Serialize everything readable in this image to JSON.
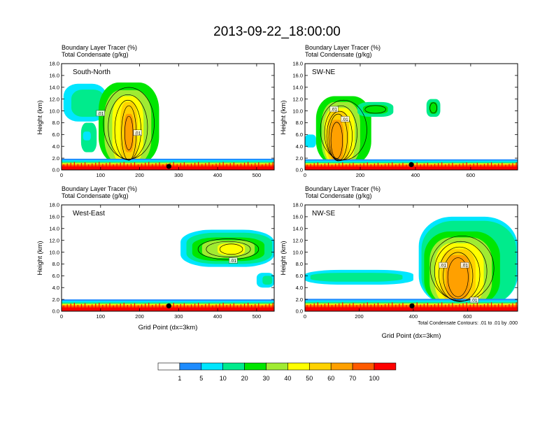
{
  "page": {
    "title": "2013-09-22_18:00:00"
  },
  "colors": {
    "levels": [
      "#ffffff",
      "#1e8cff",
      "#00e6ff",
      "#00eb8c",
      "#00e600",
      "#a0eb32",
      "#ffff00",
      "#ffd200",
      "#ffa000",
      "#ff5a00",
      "#ff0000"
    ],
    "contour": "#000000",
    "frame": "#000000"
  },
  "colorbar": {
    "labels": [
      "1",
      "5",
      "10",
      "20",
      "30",
      "40",
      "50",
      "60",
      "70",
      "100"
    ]
  },
  "footnote": "Total Condensate Contours: .01 to .01 by .000",
  "chart_data": [
    {
      "type": "heatmap",
      "panel": "South-North",
      "title_lines": [
        "Boundary Layer Tracer   (%)",
        "Total Condensate   (g/kg)"
      ],
      "ylabel": "Height (km)",
      "xlabel": "",
      "xlim": [
        0,
        545
      ],
      "ylim": [
        0,
        18
      ],
      "x_ticks": [
        "0",
        "100",
        "200",
        "300",
        "400",
        "500"
      ],
      "x_tick_values": [
        0,
        100,
        200,
        300,
        400,
        500
      ],
      "y_ticks": [
        "0.0",
        "2.0",
        "4.0",
        "6.0",
        "8.0",
        "10.0",
        "12.0",
        "14.0",
        "16.0",
        "18.0"
      ],
      "marker": {
        "x": 275,
        "y": 0.6
      },
      "boundary_layer_top_km": 1.9,
      "contour_labels": [
        {
          "text": ".01",
          "x": 100,
          "y": 9.6
        },
        {
          "text": ".01",
          "x": 195,
          "y": 6.3
        }
      ],
      "blobs": [
        {
          "x": [
            5,
            115
          ],
          "y": [
            8.2,
            14.6
          ],
          "level": 2
        },
        {
          "x": [
            25,
            110
          ],
          "y": [
            9.0,
            13.6
          ],
          "level": 3
        },
        {
          "x": [
            95,
            250
          ],
          "y": [
            1.0,
            14.8
          ],
          "level": 4
        },
        {
          "x": [
            110,
            230
          ],
          "y": [
            1.0,
            13.5
          ],
          "level": 5
        },
        {
          "x": [
            130,
            210
          ],
          "y": [
            1.0,
            12.5
          ],
          "level": 6
        },
        {
          "x": [
            150,
            195
          ],
          "y": [
            1.0,
            11.5
          ],
          "level": 7
        },
        {
          "x": [
            160,
            185
          ],
          "y": [
            3.0,
            9.5
          ],
          "level": 8
        },
        {
          "x": [
            50,
            90
          ],
          "y": [
            3.0,
            8.0
          ],
          "level": 3
        },
        {
          "x": [
            55,
            75
          ],
          "y": [
            5.0,
            6.5
          ],
          "level": 2
        }
      ]
    },
    {
      "type": "heatmap",
      "panel": "SW-NE",
      "title_lines": [
        "Boundary Layer Tracer   (%)",
        "Total Condensate   (g/kg)"
      ],
      "ylabel": "Height (km)",
      "xlabel": "",
      "xlim": [
        0,
        770
      ],
      "ylim": [
        0,
        18
      ],
      "x_ticks": [
        "0",
        "200",
        "400",
        "600"
      ],
      "x_tick_values": [
        0,
        200,
        400,
        600
      ],
      "y_ticks": [
        "0.0",
        "2.0",
        "4.0",
        "6.0",
        "8.0",
        "10.0",
        "12.0",
        "14.0",
        "16.0",
        "18.0"
      ],
      "marker": {
        "x": 385,
        "y": 0.9
      },
      "boundary_layer_top_km": 1.8,
      "contour_labels": [
        {
          "text": ".01",
          "x": 105,
          "y": 10.3
        },
        {
          "text": ".01",
          "x": 145,
          "y": 8.6
        }
      ],
      "blobs": [
        {
          "x": [
            0,
            40
          ],
          "y": [
            3.8,
            6.0
          ],
          "level": 2
        },
        {
          "x": [
            40,
            240
          ],
          "y": [
            1.0,
            12.5
          ],
          "level": 4
        },
        {
          "x": [
            60,
            200
          ],
          "y": [
            1.0,
            11.5
          ],
          "level": 5
        },
        {
          "x": [
            70,
            180
          ],
          "y": [
            1.0,
            10.5
          ],
          "level": 6
        },
        {
          "x": [
            80,
            160
          ],
          "y": [
            1.0,
            10.0
          ],
          "level": 7
        },
        {
          "x": [
            90,
            140
          ],
          "y": [
            1.5,
            8.5
          ],
          "level": 8
        },
        {
          "x": [
            190,
            320
          ],
          "y": [
            9.0,
            11.5
          ],
          "level": 3
        },
        {
          "x": [
            210,
            300
          ],
          "y": [
            9.5,
            11.0
          ],
          "level": 4
        },
        {
          "x": [
            440,
            490
          ],
          "y": [
            9.0,
            12.0
          ],
          "level": 3
        },
        {
          "x": [
            450,
            480
          ],
          "y": [
            9.5,
            11.5
          ],
          "level": 4
        }
      ]
    },
    {
      "type": "heatmap",
      "panel": "West-East",
      "title_lines": [
        "Boundary Layer Tracer   (%)",
        "Total Condensate   (g/kg)"
      ],
      "ylabel": "Height (km)",
      "xlabel": "Grid Point (dx=3km)",
      "xlim": [
        0,
        545
      ],
      "ylim": [
        0,
        18
      ],
      "x_ticks": [
        "0",
        "100",
        "200",
        "300",
        "400",
        "500"
      ],
      "x_tick_values": [
        0,
        100,
        200,
        300,
        400,
        500
      ],
      "y_ticks": [
        "0.0",
        "2.0",
        "4.0",
        "6.0",
        "8.0",
        "10.0",
        "12.0",
        "14.0",
        "16.0",
        "18.0"
      ],
      "marker": {
        "x": 275,
        "y": 0.9
      },
      "boundary_layer_top_km": 2.0,
      "contour_labels": [
        {
          "text": ".01",
          "x": 440,
          "y": 8.6
        }
      ],
      "blobs": [
        {
          "x": [
            305,
            545
          ],
          "y": [
            7.5,
            13.8
          ],
          "level": 2
        },
        {
          "x": [
            320,
            540
          ],
          "y": [
            8.0,
            13.3
          ],
          "level": 3
        },
        {
          "x": [
            335,
            520
          ],
          "y": [
            8.5,
            12.5
          ],
          "level": 4
        },
        {
          "x": [
            360,
            495
          ],
          "y": [
            9.0,
            12.0
          ],
          "level": 5
        },
        {
          "x": [
            400,
            470
          ],
          "y": [
            9.5,
            11.5
          ],
          "level": 6
        },
        {
          "x": [
            500,
            545
          ],
          "y": [
            4.0,
            6.5
          ],
          "level": 2
        },
        {
          "x": [
            515,
            540
          ],
          "y": [
            4.5,
            6.0
          ],
          "level": 3
        }
      ]
    },
    {
      "type": "heatmap",
      "panel": "NW-SE",
      "title_lines": [
        "Boundary Layer Tracer   (%)",
        "Total Condensate   (g/kg)"
      ],
      "ylabel": "Height (km)",
      "xlabel": "Grid Point (dx=3km)",
      "xlim": [
        0,
        785
      ],
      "ylim": [
        0,
        18
      ],
      "x_ticks": [
        "0",
        "200",
        "400",
        "600"
      ],
      "x_tick_values": [
        0,
        200,
        400,
        600
      ],
      "y_ticks": [
        "0.0",
        "2.0",
        "4.0",
        "6.0",
        "8.0",
        "10.0",
        "12.0",
        "14.0",
        "16.0",
        "18.0"
      ],
      "marker": {
        "x": 395,
        "y": 0.9
      },
      "boundary_layer_top_km": 2.1,
      "contour_labels": [
        {
          "text": ".01",
          "x": 510,
          "y": 7.8
        },
        {
          "text": ".01",
          "x": 590,
          "y": 7.8
        },
        {
          "text": ".01",
          "x": 625,
          "y": 1.9
        }
      ],
      "blobs": [
        {
          "x": [
            0,
            400
          ],
          "y": [
            4.5,
            7.0
          ],
          "level": 2
        },
        {
          "x": [
            20,
            360
          ],
          "y": [
            5.0,
            6.5
          ],
          "level": 3
        },
        {
          "x": [
            420,
            785
          ],
          "y": [
            1.0,
            16.0
          ],
          "level": 2
        },
        {
          "x": [
            430,
            780
          ],
          "y": [
            1.0,
            15.3
          ],
          "level": 3
        },
        {
          "x": [
            440,
            720
          ],
          "y": [
            1.0,
            13.5
          ],
          "level": 4
        },
        {
          "x": [
            460,
            690
          ],
          "y": [
            1.0,
            12.5
          ],
          "level": 5
        },
        {
          "x": [
            480,
            660
          ],
          "y": [
            1.0,
            11.5
          ],
          "level": 6
        },
        {
          "x": [
            500,
            630
          ],
          "y": [
            1.5,
            10.5
          ],
          "level": 7
        },
        {
          "x": [
            520,
            610
          ],
          "y": [
            2.0,
            9.5
          ],
          "level": 8
        }
      ]
    }
  ]
}
